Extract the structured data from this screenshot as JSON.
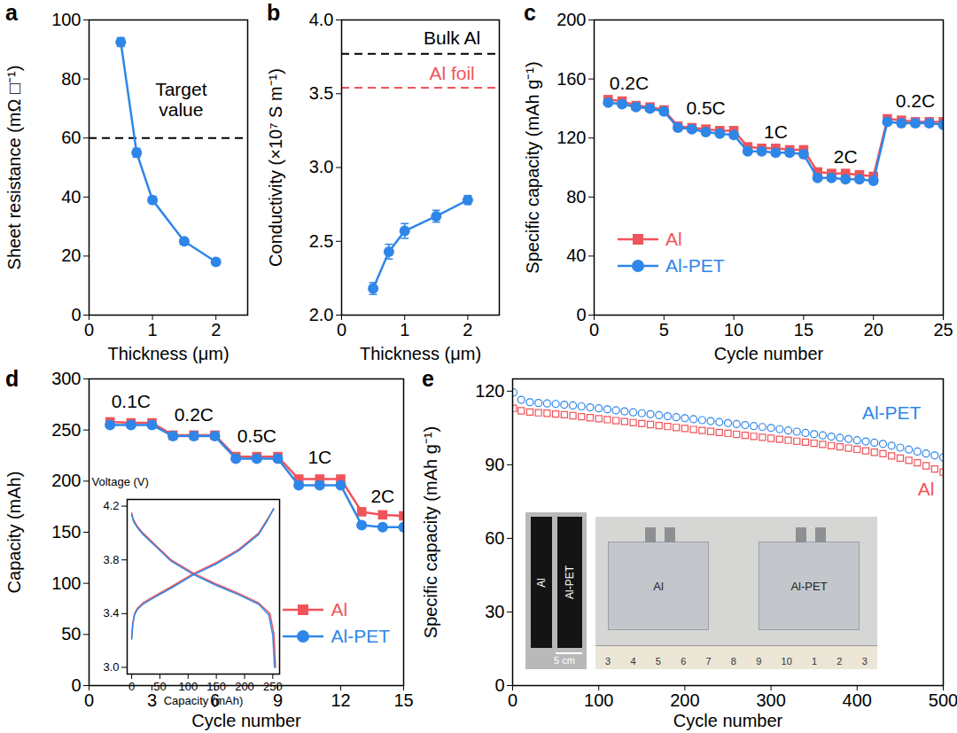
{
  "chart_data": [
    {
      "type": "line",
      "title": "a",
      "x_label": "Thickness (μm)",
      "y_label": "Sheet resistance (mΩ □⁻¹)",
      "x": [
        0.5,
        0.75,
        1,
        1.5,
        2
      ],
      "xlim": [
        0,
        2.5
      ],
      "xticks": [
        0,
        1,
        2
      ],
      "ylim": [
        0,
        100
      ],
      "yticks": [
        0,
        20,
        40,
        60,
        80,
        100
      ],
      "series": [
        {
          "color": "#2e86e8",
          "marker": "circle",
          "line_style": "solid",
          "values": [
            92.5,
            55,
            39,
            25,
            18
          ],
          "errors": [
            1.5,
            1.5,
            1.2,
            1,
            0.8
          ]
        }
      ],
      "reference_lines": [
        {
          "value": 60,
          "color": "#000000",
          "line_style": "dashed"
        }
      ],
      "annotations": [
        {
          "text": "Target\nvalue",
          "x": 1.45,
          "y": 73,
          "color": "#000000"
        }
      ]
    },
    {
      "type": "line",
      "title": "b",
      "x_label": "Thickness (μm)",
      "y_label": "Conductivity (×10⁷ S m⁻¹)",
      "x": [
        0.5,
        0.75,
        1,
        1.5,
        2
      ],
      "xlim": [
        0,
        2.5
      ],
      "xticks": [
        0,
        1,
        2
      ],
      "ylim": [
        2,
        4
      ],
      "yticks": [
        {
          "value": 2,
          "label": "2.0"
        },
        2.5,
        {
          "value": 3,
          "label": "3.0"
        },
        3.5,
        {
          "value": 4,
          "label": "4.0"
        }
      ],
      "series": [
        {
          "color": "#2e86e8",
          "marker": "circle",
          "line_style": "solid",
          "values": [
            2.18,
            2.43,
            2.57,
            2.67,
            2.78
          ],
          "errors": [
            0.04,
            0.05,
            0.05,
            0.04,
            0.03
          ]
        }
      ],
      "reference_lines": [
        {
          "value": 3.77,
          "color": "#000000",
          "line_style": "dashed"
        },
        {
          "value": 3.54,
          "color": "#f0545a",
          "line_style": "dashed"
        }
      ],
      "annotations": [
        {
          "text": "Bulk Al",
          "x": 1.75,
          "y": 3.88,
          "color": "#000000"
        },
        {
          "text": "Al foil",
          "x": 1.75,
          "y": 3.64,
          "color": "#f0545a"
        }
      ]
    },
    {
      "type": "line",
      "title": "c",
      "x_label": "Cycle number",
      "y_label": "Specific capacity (mAh g⁻¹)",
      "x": [
        1,
        2,
        3,
        4,
        5,
        6,
        7,
        8,
        9,
        10,
        11,
        12,
        13,
        14,
        15,
        16,
        17,
        18,
        19,
        20,
        21,
        22,
        23,
        24,
        25
      ],
      "xlim": [
        0,
        25
      ],
      "xticks": [
        0,
        5,
        10,
        15,
        20,
        25
      ],
      "ylim": [
        0,
        200
      ],
      "yticks": [
        0,
        40,
        80,
        120,
        160,
        200
      ],
      "legend": "lower left",
      "series": [
        {
          "name": "Al",
          "color": "#f0545a",
          "marker": "square",
          "line_style": "solid",
          "values": [
            146,
            145,
            142,
            141,
            139,
            128,
            127,
            126,
            125,
            125,
            114,
            113,
            113,
            112,
            112,
            97,
            96,
            96,
            95,
            94,
            133,
            132,
            131,
            131,
            131
          ]
        },
        {
          "name": "Al-PET",
          "color": "#2e86e8",
          "marker": "circle",
          "line_style": "solid",
          "values": [
            144,
            143,
            141,
            140,
            138,
            127,
            126,
            124,
            123,
            122,
            111,
            111,
            110,
            110,
            109,
            93,
            93,
            92,
            92,
            91,
            131,
            130,
            130,
            130,
            129
          ]
        }
      ],
      "annotations": [
        {
          "text": "0.2C",
          "x": 2.5,
          "y": 157,
          "color": "#000000"
        },
        {
          "text": "0.5C",
          "x": 8,
          "y": 140,
          "color": "#000000"
        },
        {
          "text": "1C",
          "x": 13,
          "y": 124,
          "color": "#000000"
        },
        {
          "text": "2C",
          "x": 18,
          "y": 107,
          "color": "#000000"
        },
        {
          "text": "0.2C",
          "x": 23,
          "y": 145,
          "color": "#000000"
        }
      ]
    },
    {
      "type": "line",
      "title": "d",
      "x_label": "Cycle number",
      "y_label": "Capacity (mAh)",
      "x": [
        1,
        2,
        3,
        4,
        5,
        6,
        7,
        8,
        9,
        10,
        11,
        12,
        13,
        14,
        15
      ],
      "xlim": [
        0,
        15
      ],
      "xticks": [
        0,
        3,
        6,
        9,
        12,
        15
      ],
      "ylim": [
        0,
        300
      ],
      "yticks": [
        0,
        50,
        100,
        150,
        200,
        250,
        300
      ],
      "legend": "lower right",
      "series": [
        {
          "name": "Al",
          "color": "#f0545a",
          "marker": "square",
          "line_style": "solid",
          "values": [
            258,
            257,
            257,
            245,
            245,
            245,
            224,
            224,
            224,
            202,
            202,
            202,
            170,
            167,
            166
          ]
        },
        {
          "name": "Al-PET",
          "color": "#2e86e8",
          "marker": "circle",
          "line_style": "solid",
          "values": [
            255,
            255,
            255,
            244,
            244,
            244,
            222,
            222,
            222,
            196,
            196,
            196,
            157,
            155,
            155
          ]
        }
      ],
      "annotations": [
        {
          "text": "0.1C",
          "x": 2,
          "y": 278,
          "color": "#000000"
        },
        {
          "text": "0.2C",
          "x": 5,
          "y": 265,
          "color": "#000000"
        },
        {
          "text": "0.5C",
          "x": 8,
          "y": 244,
          "color": "#000000"
        },
        {
          "text": "1C",
          "x": 11,
          "y": 223,
          "color": "#000000"
        },
        {
          "text": "2C",
          "x": 14,
          "y": 185,
          "color": "#000000"
        }
      ]
    },
    {
      "type": "line",
      "x_label": "Capacity (mAh)",
      "y_label": "Voltage (V)",
      "xlim": [
        -8,
        262
      ],
      "xticks": [
        0,
        50,
        100,
        150,
        200,
        250
      ],
      "ylim": [
        2.95,
        4.25
      ],
      "yticks": [
        {
          "value": 3,
          "label": "3.0"
        },
        3.4,
        3.8,
        4.2
      ],
      "series": [
        {
          "color": "#f0545a",
          "line_style": "solid",
          "x": [
            0,
            2,
            5,
            10,
            20,
            40,
            70,
            110,
            150,
            190,
            225,
            240,
            252
          ],
          "values": [
            3.22,
            3.33,
            3.4,
            3.44,
            3.48,
            3.53,
            3.6,
            3.7,
            3.78,
            3.88,
            4.0,
            4.1,
            4.18
          ]
        },
        {
          "color": "#f0545a",
          "line_style": "solid",
          "x": [
            0,
            3,
            10,
            20,
            40,
            70,
            110,
            150,
            190,
            225,
            245,
            252,
            255
          ],
          "values": [
            4.15,
            4.1,
            4.05,
            4.0,
            3.92,
            3.8,
            3.7,
            3.62,
            3.55,
            3.48,
            3.4,
            3.25,
            3.0
          ]
        },
        {
          "color": "#2e86e8",
          "line_style": "solid",
          "x": [
            0,
            2,
            5,
            10,
            20,
            40,
            70,
            110,
            150,
            190,
            225,
            240,
            251
          ],
          "values": [
            3.21,
            3.32,
            3.39,
            3.43,
            3.47,
            3.52,
            3.59,
            3.69,
            3.77,
            3.87,
            3.99,
            4.09,
            4.18
          ]
        },
        {
          "color": "#2e86e8",
          "line_style": "solid",
          "x": [
            0,
            3,
            10,
            20,
            40,
            70,
            110,
            150,
            190,
            225,
            243,
            250,
            253
          ],
          "values": [
            4.14,
            4.09,
            4.04,
            3.99,
            3.91,
            3.79,
            3.69,
            3.61,
            3.54,
            3.47,
            3.39,
            3.24,
            3.0
          ]
        }
      ]
    },
    {
      "type": "scatter",
      "title": "e",
      "x_label": "Cycle number",
      "y_label": "Specific capacity (mAh g⁻¹)",
      "x": [
        1,
        10,
        20,
        30,
        40,
        50,
        60,
        70,
        80,
        90,
        100,
        110,
        120,
        130,
        140,
        150,
        160,
        170,
        180,
        190,
        200,
        210,
        220,
        230,
        240,
        250,
        260,
        270,
        280,
        290,
        300,
        310,
        320,
        330,
        340,
        350,
        360,
        370,
        380,
        390,
        400,
        410,
        420,
        430,
        440,
        450,
        460,
        470,
        480,
        490,
        500
      ],
      "xlim": [
        0,
        500
      ],
      "xticks": [
        0,
        100,
        200,
        300,
        400,
        500
      ],
      "ylim": [
        0,
        125
      ],
      "yticks": [
        0,
        30,
        60,
        90,
        120
      ],
      "series": [
        {
          "name": "Al",
          "color": "#f0545a",
          "marker": "open square",
          "values": [
            113,
            112,
            111.5,
            111.2,
            111,
            110.7,
            110.4,
            110,
            109.6,
            109.2,
            108.8,
            108.4,
            108,
            107.6,
            107.2,
            106.8,
            106.4,
            106,
            105.6,
            105.2,
            104.8,
            104.4,
            104,
            103.6,
            103.2,
            102.8,
            102.4,
            102,
            101.6,
            101.2,
            100.8,
            100.4,
            100,
            99.6,
            99.2,
            98.8,
            98.3,
            97.8,
            97.3,
            96.8,
            96.3,
            95.7,
            95.1,
            94.5,
            93.6,
            92.7,
            91.8,
            90.8,
            89.6,
            88.3,
            87
          ]
        },
        {
          "name": "Al-PET",
          "color": "#2e86e8",
          "marker": "open circle",
          "values": [
            119.5,
            116.5,
            115.5,
            115.2,
            115,
            114.8,
            114.5,
            114.2,
            113.8,
            113.4,
            113,
            112.6,
            112.2,
            111.8,
            111.4,
            111,
            110.6,
            110.2,
            109.8,
            109.4,
            109,
            108.6,
            108.2,
            107.8,
            107.4,
            107,
            106.6,
            106.2,
            105.8,
            105.4,
            105,
            104.5,
            104,
            103.5,
            103,
            102.5,
            102,
            101.5,
            101,
            100.5,
            100,
            99.5,
            99,
            98.5,
            97.8,
            97,
            96.2,
            95.4,
            94.6,
            93.8,
            93
          ]
        }
      ],
      "annotations": [
        {
          "text": "Al-PET",
          "x": 440,
          "y": 111,
          "color": "#2e86e8"
        },
        {
          "text": "Al",
          "x": 480,
          "y": 80,
          "color": "#f0545a"
        }
      ],
      "photos": {
        "electrodes": {
          "labels": [
            "Al",
            "Al-PET"
          ],
          "scale_bar": "5 cm"
        },
        "pouch_cells": {
          "labels": [
            "Al",
            "Al-PET"
          ],
          "ruler": [
            "3",
            "4",
            "5",
            "6",
            "7",
            "8",
            "9",
            "10",
            "1",
            "2",
            "3"
          ]
        }
      }
    }
  ]
}
